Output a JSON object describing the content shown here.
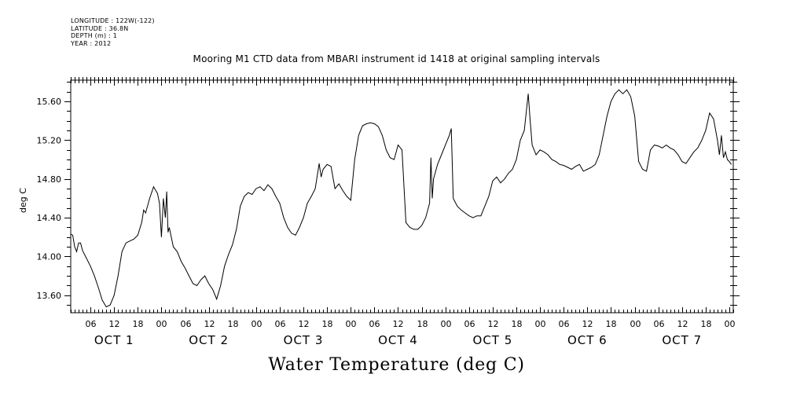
{
  "header": {
    "longitude": "LONGITUDE : 122W(-122)",
    "latitude": "LATITUDE : 36.8N",
    "depth": "DEPTH (m) : 1",
    "year": "YEAR : 2012"
  },
  "chart_data": {
    "type": "line",
    "title": "Mooring M1 CTD data from MBARI instrument id 1418 at original sampling intervals",
    "xlabel": "Water Temperature (deg C)",
    "ylabel": "deg C",
    "ylim": [
      13.42,
      15.82
    ],
    "xlim": [
      "2012-10-01T01:00",
      "2012-10-08T01:00"
    ],
    "y_ticks": [
      "13.60",
      "14.00",
      "14.40",
      "14.80",
      "15.20",
      "15.60"
    ],
    "x_hour_labels": [
      "06",
      "12",
      "18",
      "00"
    ],
    "x_day_labels": [
      "OCT  1",
      "OCT  2",
      "OCT  3",
      "OCT  4",
      "OCT  5",
      "OCT  6",
      "OCT  7"
    ],
    "grid": false,
    "series": [
      {
        "color": "#000000",
        "points": [
          [
            "2012-10-01T01:00",
            14.23
          ],
          [
            "2012-10-01T01:30",
            14.22
          ],
          [
            "2012-10-01T02:00",
            14.1
          ],
          [
            "2012-10-01T02:30",
            14.05
          ],
          [
            "2012-10-01T03:00",
            14.14
          ],
          [
            "2012-10-01T03:30",
            14.14
          ],
          [
            "2012-10-01T04:00",
            14.06
          ],
          [
            "2012-10-01T05:00",
            13.98
          ],
          [
            "2012-10-01T06:00",
            13.9
          ],
          [
            "2012-10-01T07:00",
            13.8
          ],
          [
            "2012-10-01T08:00",
            13.68
          ],
          [
            "2012-10-01T09:00",
            13.55
          ],
          [
            "2012-10-01T10:00",
            13.48
          ],
          [
            "2012-10-01T11:00",
            13.5
          ],
          [
            "2012-10-01T12:00",
            13.6
          ],
          [
            "2012-10-01T13:00",
            13.8
          ],
          [
            "2012-10-01T14:00",
            14.05
          ],
          [
            "2012-10-01T15:00",
            14.14
          ],
          [
            "2012-10-01T16:00",
            14.16
          ],
          [
            "2012-10-01T17:00",
            14.18
          ],
          [
            "2012-10-01T18:00",
            14.22
          ],
          [
            "2012-10-01T19:00",
            14.35
          ],
          [
            "2012-10-01T19:30",
            14.48
          ],
          [
            "2012-10-01T20:00",
            14.45
          ],
          [
            "2012-10-01T21:00",
            14.6
          ],
          [
            "2012-10-01T22:00",
            14.72
          ],
          [
            "2012-10-01T23:00",
            14.65
          ],
          [
            "2012-10-01T23:30",
            14.55
          ],
          [
            "2012-10-02T00:00",
            14.2
          ],
          [
            "2012-10-02T00:30",
            14.6
          ],
          [
            "2012-10-02T01:00",
            14.4
          ],
          [
            "2012-10-02T01:20",
            14.67
          ],
          [
            "2012-10-02T01:40",
            14.25
          ],
          [
            "2012-10-02T02:00",
            14.3
          ],
          [
            "2012-10-02T03:00",
            14.1
          ],
          [
            "2012-10-02T04:00",
            14.05
          ],
          [
            "2012-10-02T05:00",
            13.95
          ],
          [
            "2012-10-02T06:00",
            13.88
          ],
          [
            "2012-10-02T07:00",
            13.8
          ],
          [
            "2012-10-02T08:00",
            13.72
          ],
          [
            "2012-10-02T09:00",
            13.7
          ],
          [
            "2012-10-02T10:00",
            13.76
          ],
          [
            "2012-10-02T11:00",
            13.8
          ],
          [
            "2012-10-02T12:00",
            13.72
          ],
          [
            "2012-10-02T13:00",
            13.66
          ],
          [
            "2012-10-02T14:00",
            13.56
          ],
          [
            "2012-10-02T15:00",
            13.7
          ],
          [
            "2012-10-02T16:00",
            13.9
          ],
          [
            "2012-10-02T17:00",
            14.02
          ],
          [
            "2012-10-02T18:00",
            14.12
          ],
          [
            "2012-10-02T19:00",
            14.28
          ],
          [
            "2012-10-02T20:00",
            14.52
          ],
          [
            "2012-10-02T21:00",
            14.62
          ],
          [
            "2012-10-02T22:00",
            14.66
          ],
          [
            "2012-10-02T23:00",
            14.64
          ],
          [
            "2012-10-03T00:00",
            14.7
          ],
          [
            "2012-10-03T01:00",
            14.72
          ],
          [
            "2012-10-03T02:00",
            14.68
          ],
          [
            "2012-10-03T03:00",
            14.74
          ],
          [
            "2012-10-03T04:00",
            14.7
          ],
          [
            "2012-10-03T05:00",
            14.62
          ],
          [
            "2012-10-03T06:00",
            14.55
          ],
          [
            "2012-10-03T07:00",
            14.4
          ],
          [
            "2012-10-03T08:00",
            14.3
          ],
          [
            "2012-10-03T09:00",
            14.24
          ],
          [
            "2012-10-03T10:00",
            14.22
          ],
          [
            "2012-10-03T11:00",
            14.3
          ],
          [
            "2012-10-03T12:00",
            14.4
          ],
          [
            "2012-10-03T13:00",
            14.55
          ],
          [
            "2012-10-03T14:00",
            14.62
          ],
          [
            "2012-10-03T15:00",
            14.7
          ],
          [
            "2012-10-03T16:00",
            14.96
          ],
          [
            "2012-10-03T16:30",
            14.82
          ],
          [
            "2012-10-03T17:00",
            14.9
          ],
          [
            "2012-10-03T18:00",
            14.95
          ],
          [
            "2012-10-03T19:00",
            14.93
          ],
          [
            "2012-10-03T20:00",
            14.7
          ],
          [
            "2012-10-03T21:00",
            14.75
          ],
          [
            "2012-10-03T22:00",
            14.68
          ],
          [
            "2012-10-03T23:00",
            14.62
          ],
          [
            "2012-10-04T00:00",
            14.58
          ],
          [
            "2012-10-04T01:00",
            15.0
          ],
          [
            "2012-10-04T02:00",
            15.25
          ],
          [
            "2012-10-04T03:00",
            15.35
          ],
          [
            "2012-10-04T04:00",
            15.37
          ],
          [
            "2012-10-04T05:00",
            15.38
          ],
          [
            "2012-10-04T06:00",
            15.37
          ],
          [
            "2012-10-04T07:00",
            15.34
          ],
          [
            "2012-10-04T08:00",
            15.25
          ],
          [
            "2012-10-04T09:00",
            15.1
          ],
          [
            "2012-10-04T10:00",
            15.02
          ],
          [
            "2012-10-04T11:00",
            15.0
          ],
          [
            "2012-10-04T12:00",
            15.15
          ],
          [
            "2012-10-04T13:00",
            15.1
          ],
          [
            "2012-10-04T14:00",
            14.35
          ],
          [
            "2012-10-04T15:00",
            14.3
          ],
          [
            "2012-10-04T16:00",
            14.28
          ],
          [
            "2012-10-04T17:00",
            14.28
          ],
          [
            "2012-10-04T18:00",
            14.32
          ],
          [
            "2012-10-04T19:00",
            14.4
          ],
          [
            "2012-10-04T20:00",
            14.55
          ],
          [
            "2012-10-04T20:20",
            15.02
          ],
          [
            "2012-10-04T20:40",
            14.6
          ],
          [
            "2012-10-04T21:00",
            14.8
          ],
          [
            "2012-10-04T22:00",
            14.95
          ],
          [
            "2012-10-04T23:00",
            15.05
          ],
          [
            "2012-10-05T00:00",
            15.15
          ],
          [
            "2012-10-05T01:00",
            15.25
          ],
          [
            "2012-10-05T01:30",
            15.32
          ],
          [
            "2012-10-05T02:00",
            14.6
          ],
          [
            "2012-10-05T02:30",
            14.56
          ],
          [
            "2012-10-05T03:00",
            14.52
          ],
          [
            "2012-10-05T04:00",
            14.48
          ],
          [
            "2012-10-05T05:00",
            14.45
          ],
          [
            "2012-10-05T06:00",
            14.42
          ],
          [
            "2012-10-05T07:00",
            14.4
          ],
          [
            "2012-10-05T08:00",
            14.42
          ],
          [
            "2012-10-05T09:00",
            14.42
          ],
          [
            "2012-10-05T10:00",
            14.52
          ],
          [
            "2012-10-05T11:00",
            14.62
          ],
          [
            "2012-10-05T12:00",
            14.78
          ],
          [
            "2012-10-05T13:00",
            14.82
          ],
          [
            "2012-10-05T14:00",
            14.76
          ],
          [
            "2012-10-05T15:00",
            14.8
          ],
          [
            "2012-10-05T16:00",
            14.86
          ],
          [
            "2012-10-05T17:00",
            14.9
          ],
          [
            "2012-10-05T18:00",
            15.0
          ],
          [
            "2012-10-05T19:00",
            15.2
          ],
          [
            "2012-10-05T20:00",
            15.3
          ],
          [
            "2012-10-05T21:00",
            15.68
          ],
          [
            "2012-10-05T21:30",
            15.4
          ],
          [
            "2012-10-05T22:00",
            15.15
          ],
          [
            "2012-10-05T23:00",
            15.05
          ],
          [
            "2012-10-06T00:00",
            15.1
          ],
          [
            "2012-10-06T01:00",
            15.08
          ],
          [
            "2012-10-06T02:00",
            15.05
          ],
          [
            "2012-10-06T03:00",
            15.0
          ],
          [
            "2012-10-06T04:00",
            14.98
          ],
          [
            "2012-10-06T05:00",
            14.95
          ],
          [
            "2012-10-06T06:00",
            14.94
          ],
          [
            "2012-10-06T07:00",
            14.92
          ],
          [
            "2012-10-06T08:00",
            14.9
          ],
          [
            "2012-10-06T09:00",
            14.93
          ],
          [
            "2012-10-06T10:00",
            14.95
          ],
          [
            "2012-10-06T11:00",
            14.88
          ],
          [
            "2012-10-06T12:00",
            14.9
          ],
          [
            "2012-10-06T13:00",
            14.92
          ],
          [
            "2012-10-06T14:00",
            14.95
          ],
          [
            "2012-10-06T15:00",
            15.05
          ],
          [
            "2012-10-06T16:00",
            15.25
          ],
          [
            "2012-10-06T17:00",
            15.45
          ],
          [
            "2012-10-06T18:00",
            15.6
          ],
          [
            "2012-10-06T19:00",
            15.68
          ],
          [
            "2012-10-06T20:00",
            15.72
          ],
          [
            "2012-10-06T21:00",
            15.68
          ],
          [
            "2012-10-06T22:00",
            15.72
          ],
          [
            "2012-10-06T23:00",
            15.65
          ],
          [
            "2012-10-07T00:00",
            15.45
          ],
          [
            "2012-10-07T01:00",
            14.98
          ],
          [
            "2012-10-07T02:00",
            14.9
          ],
          [
            "2012-10-07T03:00",
            14.88
          ],
          [
            "2012-10-07T04:00",
            15.1
          ],
          [
            "2012-10-07T05:00",
            15.15
          ],
          [
            "2012-10-07T06:00",
            15.14
          ],
          [
            "2012-10-07T07:00",
            15.12
          ],
          [
            "2012-10-07T08:00",
            15.15
          ],
          [
            "2012-10-07T09:00",
            15.12
          ],
          [
            "2012-10-07T10:00",
            15.1
          ],
          [
            "2012-10-07T11:00",
            15.05
          ],
          [
            "2012-10-07T12:00",
            14.98
          ],
          [
            "2012-10-07T13:00",
            14.96
          ],
          [
            "2012-10-07T14:00",
            15.02
          ],
          [
            "2012-10-07T15:00",
            15.08
          ],
          [
            "2012-10-07T16:00",
            15.12
          ],
          [
            "2012-10-07T17:00",
            15.2
          ],
          [
            "2012-10-07T18:00",
            15.3
          ],
          [
            "2012-10-07T19:00",
            15.48
          ],
          [
            "2012-10-07T20:00",
            15.42
          ],
          [
            "2012-10-07T21:00",
            15.2
          ],
          [
            "2012-10-07T21:30",
            15.05
          ],
          [
            "2012-10-07T22:00",
            15.25
          ],
          [
            "2012-10-07T22:30",
            15.02
          ],
          [
            "2012-10-07T23:00",
            15.08
          ],
          [
            "2012-10-07T23:30",
            15.0
          ],
          [
            "2012-10-08T00:00",
            14.98
          ],
          [
            "2012-10-08T00:30",
            14.95
          ]
        ]
      }
    ]
  }
}
